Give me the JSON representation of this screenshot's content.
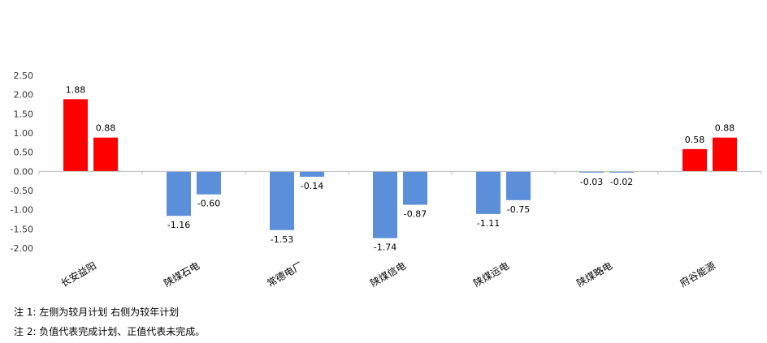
{
  "chart_data": {
    "type": "bar",
    "categories": [
      "长安益阳",
      "陕煤石电",
      "常德电厂",
      "陕煤信电",
      "陕煤运电",
      "陕煤略电",
      "府谷能源"
    ],
    "series": [
      {
        "values": [
          1.88,
          -1.16,
          -1.53,
          -1.74,
          -1.11,
          -0.03,
          0.58
        ]
      },
      {
        "values": [
          0.88,
          -0.6,
          -0.14,
          -0.87,
          -0.75,
          -0.02,
          0.88
        ]
      }
    ],
    "value_labels": [
      [
        "1.88",
        "-1.16",
        "-1.53",
        "-1.74",
        "-1.11",
        "-0.03",
        "0.58"
      ],
      [
        "0.88",
        "-0.60",
        "-0.14",
        "-0.87",
        "-0.75",
        "-0.02",
        "0.88"
      ]
    ],
    "ylim": [
      -2.0,
      2.5
    ],
    "yticks": [
      "2.50",
      "2.00",
      "1.50",
      "1.00",
      "0.50",
      "0.00",
      "-0.50",
      "-1.00",
      "-1.50",
      "-2.00"
    ],
    "colors": {
      "positive": "#ff0000",
      "negative": "#5b8fd9",
      "axis": "#bfbfbf"
    },
    "grid": false,
    "legend": "none"
  },
  "notes": {
    "note1": "注 1: 左侧为较月计划  右侧为较年计划",
    "note2": "注 2: 负值代表完成计划、正值代表未完成。"
  }
}
